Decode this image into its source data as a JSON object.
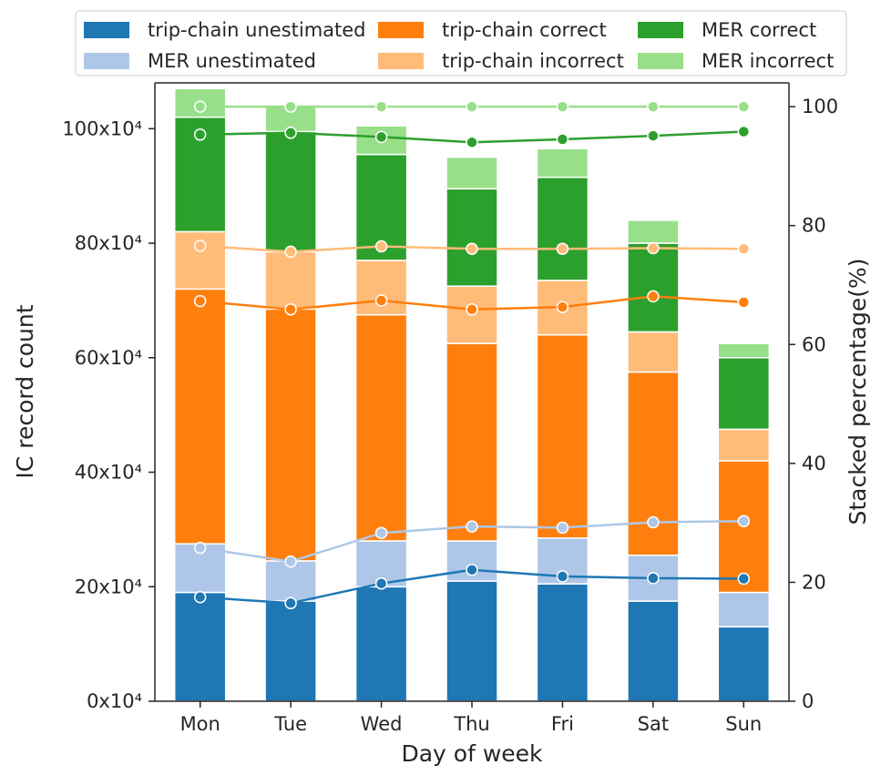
{
  "chart_data": {
    "type": "bar",
    "stacked": true,
    "categories": [
      "Mon",
      "Tue",
      "Wed",
      "Thu",
      "Fri",
      "Sat",
      "Sun"
    ],
    "xlabel": "Day of week",
    "ylabel": "IC record count",
    "y2label": "Stacked percentage(%)",
    "ylim": [
      0,
      1.08
    ],
    "y2lim": [
      0,
      104
    ],
    "yticks": [
      0,
      0.2,
      0.4,
      0.6,
      0.8,
      1.0
    ],
    "ytick_labels": [
      "0x10⁴",
      "20x10⁴",
      "40x10⁴",
      "60x10⁴",
      "80x10⁴",
      "100x10⁴"
    ],
    "y2ticks": [
      0,
      20,
      40,
      60,
      80,
      100
    ],
    "y2tick_labels": [
      "0",
      "20",
      "40",
      "60",
      "80",
      "100"
    ],
    "bar_series": [
      {
        "name": "trip-chain unestimated",
        "color": "#1f77b4",
        "values": [
          0.19,
          0.175,
          0.2,
          0.21,
          0.205,
          0.175,
          0.13
        ]
      },
      {
        "name": "MER unestimated",
        "color": "#aec7e8",
        "values": [
          0.085,
          0.07,
          0.08,
          0.07,
          0.08,
          0.08,
          0.06
        ]
      },
      {
        "name": "trip-chain correct",
        "color": "#ff7f0e",
        "values": [
          0.445,
          0.44,
          0.395,
          0.345,
          0.355,
          0.32,
          0.23
        ]
      },
      {
        "name": "trip-chain incorrect",
        "color": "#ffbb78",
        "values": [
          0.1,
          0.1,
          0.095,
          0.1,
          0.095,
          0.07,
          0.055
        ]
      },
      {
        "name": "MER correct",
        "color": "#2ca02c",
        "values": [
          0.2,
          0.21,
          0.185,
          0.17,
          0.18,
          0.155,
          0.125
        ]
      },
      {
        "name": "MER incorrect",
        "color": "#98df8a",
        "values": [
          0.05,
          0.045,
          0.05,
          0.055,
          0.05,
          0.04,
          0.025
        ]
      }
    ],
    "line_series": [
      {
        "name": "trip-chain unestimated",
        "color": "#1f77b4",
        "values": [
          17.5,
          16.5,
          19.8,
          22.1,
          21.0,
          20.7,
          20.6
        ]
      },
      {
        "name": "MER unestimated",
        "color": "#aec7e8",
        "values": [
          25.8,
          23.5,
          28.3,
          29.4,
          29.2,
          30.1,
          30.3
        ]
      },
      {
        "name": "trip-chain correct",
        "color": "#ff7f0e",
        "values": [
          67.3,
          65.9,
          67.4,
          65.9,
          66.3,
          68.1,
          67.1
        ]
      },
      {
        "name": "trip-chain incorrect",
        "color": "#ffbb78",
        "values": [
          76.6,
          75.6,
          76.5,
          76.1,
          76.1,
          76.2,
          76.1
        ]
      },
      {
        "name": "MER correct",
        "color": "#2ca02c",
        "values": [
          95.3,
          95.6,
          94.9,
          94.0,
          94.5,
          95.1,
          95.8
        ]
      },
      {
        "name": "MER incorrect",
        "color": "#98df8a",
        "values": [
          100,
          100,
          100,
          100,
          100,
          100,
          100
        ]
      }
    ],
    "legend": {
      "placement": "top",
      "columns": 3,
      "items": [
        "trip-chain unestimated",
        "MER unestimated",
        "trip-chain correct",
        "trip-chain incorrect",
        "MER correct",
        "MER incorrect"
      ]
    },
    "grid": false
  }
}
